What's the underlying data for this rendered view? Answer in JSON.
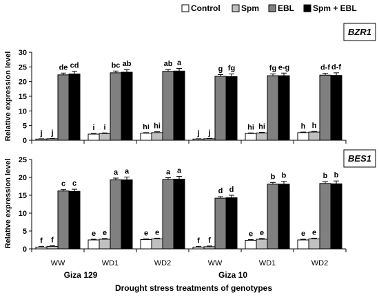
{
  "legend": {
    "items": [
      {
        "label": "Control",
        "color": "#ffffff"
      },
      {
        "label": "Spm",
        "color": "#c0c0c0"
      },
      {
        "label": "EBL",
        "color": "#808080"
      },
      {
        "label": "Spm + EBL",
        "color": "#000000"
      }
    ]
  },
  "xaxis": {
    "categories": [
      "WW",
      "WD1",
      "WD2",
      "WW",
      "WD1",
      "WD2"
    ],
    "genotypes": [
      "Giza 129",
      "Giza 10"
    ],
    "title": "Drought stress treatments of genotypes"
  },
  "chart_data": [
    {
      "type": "bar",
      "gene_label": "BZR1",
      "ylabel": "Relative expression level",
      "ylim": [
        0,
        30
      ],
      "yticks": [
        0,
        5,
        10,
        15,
        20,
        25,
        30
      ],
      "categories": [
        "WW",
        "WD1",
        "WD2",
        "WW",
        "WD1",
        "WD2"
      ],
      "series": [
        {
          "name": "Control",
          "values": [
            0.4,
            2.1,
            2.4,
            0.4,
            2.3,
            2.6
          ],
          "errors": [
            0.1,
            0.2,
            0.2,
            0.1,
            0.2,
            0.2
          ],
          "letters": [
            "j",
            "i",
            "hi",
            "j",
            "hi",
            "h"
          ]
        },
        {
          "name": "Spm",
          "values": [
            0.5,
            2.3,
            2.6,
            0.5,
            2.5,
            2.8
          ],
          "errors": [
            0.1,
            0.2,
            0.3,
            0.1,
            0.2,
            0.2
          ],
          "letters": [
            "j",
            "i",
            "hi",
            "j",
            "hi",
            "h"
          ]
        },
        {
          "name": "EBL",
          "values": [
            22.3,
            23.0,
            23.5,
            21.8,
            22.0,
            22.2
          ],
          "errors": [
            0.6,
            0.6,
            0.6,
            0.6,
            0.6,
            0.6
          ],
          "letters": [
            "de",
            "bc",
            "ab",
            "g",
            "fg",
            "d-f"
          ]
        },
        {
          "name": "Spm + EBL",
          "values": [
            22.6,
            23.2,
            23.6,
            21.7,
            22.0,
            22.1
          ],
          "errors": [
            0.9,
            0.9,
            0.9,
            0.9,
            0.9,
            0.9
          ],
          "letters": [
            "cd",
            "ab",
            "a",
            "fg",
            "e-g",
            "d-f"
          ]
        }
      ]
    },
    {
      "type": "bar",
      "gene_label": "BES1",
      "ylabel": "Relative expression level",
      "ylim": [
        0,
        25
      ],
      "yticks": [
        0,
        5,
        10,
        15,
        20,
        25
      ],
      "categories": [
        "WW",
        "WD1",
        "WD2",
        "WW",
        "WD1",
        "WD2"
      ],
      "series": [
        {
          "name": "Control",
          "values": [
            0.5,
            2.5,
            2.6,
            0.5,
            2.4,
            2.5
          ],
          "errors": [
            0.2,
            0.2,
            0.2,
            0.2,
            0.2,
            0.2
          ],
          "letters": [
            "f",
            "e",
            "e",
            "f",
            "e",
            "e"
          ]
        },
        {
          "name": "Spm",
          "values": [
            0.7,
            2.7,
            2.8,
            0.6,
            2.7,
            2.8
          ],
          "errors": [
            0.2,
            0.2,
            0.2,
            0.2,
            0.2,
            0.2
          ],
          "letters": [
            "f",
            "e",
            "e",
            "f",
            "e",
            "e"
          ]
        },
        {
          "name": "EBL",
          "values": [
            16.2,
            19.3,
            19.4,
            14.2,
            18.1,
            18.3
          ],
          "errors": [
            0.4,
            0.5,
            0.5,
            0.4,
            0.5,
            0.5
          ],
          "letters": [
            "c",
            "a",
            "a",
            "d",
            "b",
            "b"
          ]
        },
        {
          "name": "Spm + EBL",
          "values": [
            16.1,
            19.3,
            19.5,
            14.3,
            18.1,
            18.2
          ],
          "errors": [
            0.6,
            0.8,
            0.8,
            0.7,
            0.8,
            0.8
          ],
          "letters": [
            "c",
            "a",
            "a",
            "d",
            "b",
            "b"
          ]
        }
      ]
    }
  ]
}
